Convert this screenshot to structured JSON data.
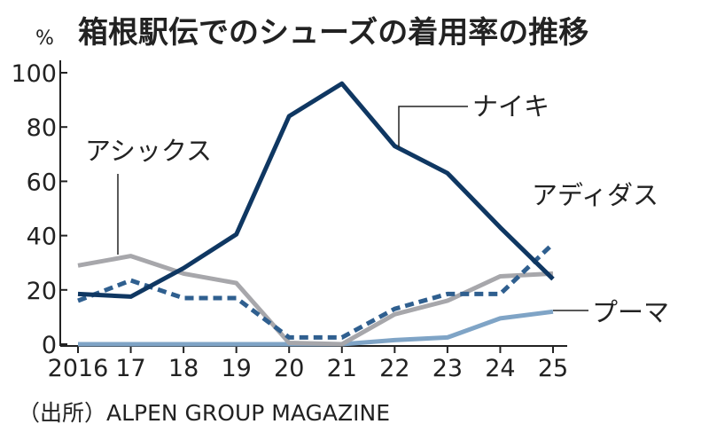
{
  "chart_data": {
    "type": "line",
    "title": "箱根駅伝でのシューズの着用率の推移",
    "unit": "%",
    "x": [
      "2016",
      "17",
      "18",
      "19",
      "20",
      "21",
      "22",
      "23",
      "24",
      "25"
    ],
    "ylim": [
      0,
      100
    ],
    "yticks": [
      "0",
      "20",
      "40",
      "60",
      "80",
      "100"
    ],
    "series": [
      {
        "name": "アシックス",
        "color": "#a7a7ab",
        "style": "solid",
        "values": [
          29,
          32.5,
          26,
          22.5,
          0.5,
          0,
          11,
          16,
          25,
          26
        ]
      },
      {
        "name": "ナイキ",
        "color": "#0f3762",
        "style": "solid",
        "values": [
          18.5,
          17.5,
          28,
          40.5,
          84,
          96,
          73,
          63,
          43,
          24
        ]
      },
      {
        "name": "アディダス",
        "color": "#2f5f8f",
        "style": "dashed",
        "values": [
          16,
          23.5,
          17,
          17,
          2.5,
          2.5,
          13,
          18.5,
          18.5,
          37
        ]
      },
      {
        "name": "プーマ",
        "color": "#7fa4c6",
        "style": "solid",
        "values": [
          0,
          0,
          0,
          0,
          0,
          0,
          1.5,
          2.5,
          9.5,
          12
        ]
      }
    ],
    "source": "（出所）ALPEN GROUP MAGAZINE"
  }
}
